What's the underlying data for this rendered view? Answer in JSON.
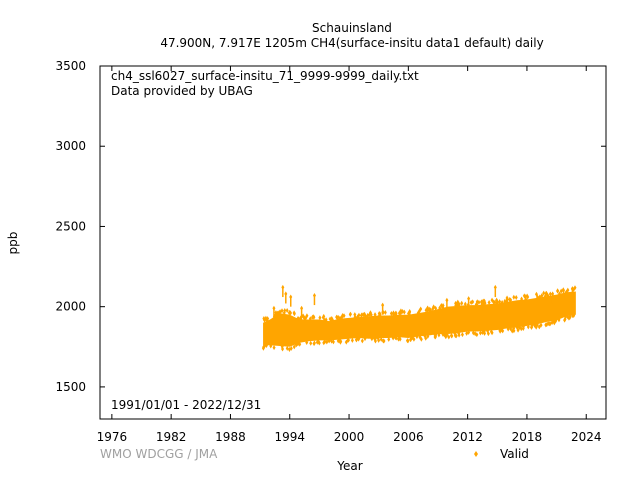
{
  "chart_data": {
    "type": "scatter",
    "title": "Schauinsland",
    "subtitle": "47.900N, 7.917E 1205m    CH4(surface-insitu data1 default) daily",
    "file_label": "ch4_ssl6027_surface-insitu_71_9999-9999_daily.txt",
    "provider_label": "Data provided by UBAG",
    "period_label": "1991/01/01 - 2022/12/31",
    "credit": "WMO WDCGG / JMA",
    "xlabel": "Year",
    "ylabel": "ppb",
    "xlim": [
      1974.8,
      2026.0
    ],
    "ylim": [
      1300,
      3500
    ],
    "xticks": [
      1976,
      1982,
      1988,
      1994,
      2000,
      2006,
      2012,
      2018,
      2024
    ],
    "yticks": [
      1500,
      2000,
      2500,
      3000,
      3500
    ],
    "legend_position": "bottom-right",
    "series": [
      {
        "name": "Valid",
        "color": "#FFA500",
        "band": {
          "x": [
            1991.3,
            1992,
            1993,
            1994,
            1995,
            1996,
            1997,
            1998,
            1999,
            2000,
            2001,
            2002,
            2003,
            2004,
            2005,
            2006,
            2007,
            2008,
            2009,
            2010,
            2011,
            2012,
            2013,
            2014,
            2015,
            2016,
            2017,
            2018,
            2019,
            2020,
            2021,
            2022,
            2022.95
          ],
          "y_low": [
            1760,
            1760,
            1755,
            1750,
            1775,
            1785,
            1790,
            1790,
            1795,
            1800,
            1805,
            1800,
            1805,
            1805,
            1810,
            1805,
            1815,
            1820,
            1830,
            1830,
            1835,
            1845,
            1845,
            1850,
            1855,
            1865,
            1870,
            1880,
            1890,
            1905,
            1915,
            1940,
            1950
          ],
          "y_high": [
            1900,
            1920,
            1960,
            1950,
            1920,
            1920,
            1920,
            1910,
            1925,
            1930,
            1935,
            1940,
            1945,
            1945,
            1950,
            1950,
            1960,
            1970,
            1985,
            2000,
            2005,
            2010,
            2010,
            2015,
            2020,
            2030,
            2040,
            2045,
            2055,
            2065,
            2075,
            2090,
            2095
          ]
        },
        "spikes": [
          [
            1993.3,
            2120
          ],
          [
            1993.6,
            2080
          ],
          [
            1994.1,
            2060
          ],
          [
            1996.5,
            2070
          ],
          [
            1995.2,
            1990
          ],
          [
            2003.4,
            2010
          ],
          [
            2009.9,
            2040
          ],
          [
            2012.1,
            2050
          ],
          [
            2014.8,
            2120
          ],
          [
            2013.4,
            2030
          ],
          [
            2019.3,
            2060
          ],
          [
            2020.6,
            2080
          ],
          [
            2021.7,
            2100
          ],
          [
            2022.6,
            2110
          ],
          [
            1992.4,
            1990
          ]
        ]
      }
    ]
  }
}
